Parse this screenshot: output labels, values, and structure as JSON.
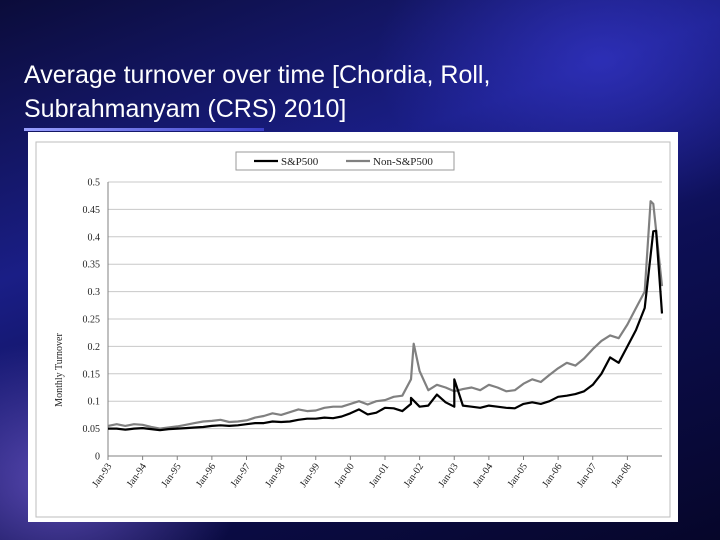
{
  "slide": {
    "title": "Average turnover over time [Chordia, Roll, Subrahmanyam (CRS) 2010]"
  },
  "colors": {
    "sp500": "#000000",
    "non_sp500": "#808080"
  },
  "chart_data": {
    "type": "line",
    "title": "",
    "xlabel": "",
    "ylabel": "Monthly Turnover",
    "ylim": [
      0,
      0.5
    ],
    "yticks": [
      "0",
      "0.05",
      "0.1",
      "0.15",
      "0.2",
      "0.25",
      "0.3",
      "0.35",
      "0.4",
      "0.45",
      "0.5"
    ],
    "xticks": [
      "Jan-93",
      "Jan-94",
      "Jan-95",
      "Jan-96",
      "Jan-97",
      "Jan-98",
      "Jan-99",
      "Jan-00",
      "Jan-01",
      "Jan-02",
      "Jan-03",
      "Jan-04",
      "Jan-05",
      "Jan-06",
      "Jan-07",
      "Jan-08"
    ],
    "xrange": [
      1993.0,
      2009.0
    ],
    "grid": "horizontal",
    "legend_position": "top",
    "series": [
      {
        "name": "S&P500",
        "color": "#000000",
        "points": [
          [
            1993.0,
            0.05
          ],
          [
            1993.25,
            0.05
          ],
          [
            1993.5,
            0.048
          ],
          [
            1993.75,
            0.05
          ],
          [
            1994.0,
            0.051
          ],
          [
            1994.25,
            0.049
          ],
          [
            1994.5,
            0.047
          ],
          [
            1994.75,
            0.049
          ],
          [
            1995.0,
            0.05
          ],
          [
            1995.25,
            0.051
          ],
          [
            1995.5,
            0.052
          ],
          [
            1995.75,
            0.053
          ],
          [
            1996.0,
            0.055
          ],
          [
            1996.25,
            0.056
          ],
          [
            1996.5,
            0.055
          ],
          [
            1996.75,
            0.056
          ],
          [
            1997.0,
            0.058
          ],
          [
            1997.25,
            0.06
          ],
          [
            1997.5,
            0.06
          ],
          [
            1997.75,
            0.063
          ],
          [
            1998.0,
            0.062
          ],
          [
            1998.25,
            0.063
          ],
          [
            1998.5,
            0.066
          ],
          [
            1998.75,
            0.068
          ],
          [
            1999.0,
            0.068
          ],
          [
            1999.25,
            0.07
          ],
          [
            1999.5,
            0.069
          ],
          [
            1999.75,
            0.072
          ],
          [
            2000.0,
            0.078
          ],
          [
            2000.25,
            0.085
          ],
          [
            2000.5,
            0.076
          ],
          [
            2000.75,
            0.079
          ],
          [
            2001.0,
            0.088
          ],
          [
            2001.25,
            0.087
          ],
          [
            2001.5,
            0.082
          ],
          [
            2001.75,
            0.095
          ],
          [
            2002.0,
            0.09
          ],
          [
            2002.25,
            0.092
          ],
          [
            2002.5,
            0.112
          ],
          [
            2002.75,
            0.098
          ],
          [
            2003.0,
            0.09
          ],
          [
            2003.25,
            0.092
          ],
          [
            2003.5,
            0.09
          ],
          [
            2003.75,
            0.088
          ],
          [
            2004.0,
            0.092
          ],
          [
            2004.25,
            0.09
          ],
          [
            2004.5,
            0.088
          ],
          [
            2004.75,
            0.087
          ],
          [
            2005.0,
            0.095
          ],
          [
            2005.25,
            0.098
          ],
          [
            2005.5,
            0.095
          ],
          [
            2005.75,
            0.1
          ],
          [
            2006.0,
            0.108
          ],
          [
            2006.25,
            0.11
          ],
          [
            2006.5,
            0.113
          ],
          [
            2006.75,
            0.118
          ],
          [
            2007.0,
            0.13
          ],
          [
            2007.25,
            0.15
          ],
          [
            2007.5,
            0.18
          ],
          [
            2007.75,
            0.17
          ],
          [
            2008.0,
            0.2
          ],
          [
            2008.25,
            0.23
          ],
          [
            2008.5,
            0.27
          ],
          [
            2008.75,
            0.41
          ],
          [
            2009.0,
            0.26
          ]
        ]
      },
      {
        "name": "Non-S&P500",
        "color": "#808080",
        "points": [
          [
            1993.0,
            0.055
          ],
          [
            1993.25,
            0.058
          ],
          [
            1993.5,
            0.055
          ],
          [
            1993.75,
            0.058
          ],
          [
            1994.0,
            0.057
          ],
          [
            1994.25,
            0.053
          ],
          [
            1994.5,
            0.05
          ],
          [
            1994.75,
            0.052
          ],
          [
            1995.0,
            0.054
          ],
          [
            1995.25,
            0.057
          ],
          [
            1995.5,
            0.06
          ],
          [
            1995.75,
            0.063
          ],
          [
            1996.0,
            0.064
          ],
          [
            1996.25,
            0.066
          ],
          [
            1996.5,
            0.062
          ],
          [
            1996.75,
            0.063
          ],
          [
            1997.0,
            0.065
          ],
          [
            1997.25,
            0.07
          ],
          [
            1997.5,
            0.073
          ],
          [
            1997.75,
            0.078
          ],
          [
            1998.0,
            0.075
          ],
          [
            1998.25,
            0.08
          ],
          [
            1998.5,
            0.085
          ],
          [
            1998.75,
            0.082
          ],
          [
            1999.0,
            0.083
          ],
          [
            1999.25,
            0.088
          ],
          [
            1999.5,
            0.09
          ],
          [
            1999.75,
            0.09
          ],
          [
            2000.0,
            0.095
          ],
          [
            2000.25,
            0.1
          ],
          [
            2000.5,
            0.094
          ],
          [
            2000.75,
            0.1
          ],
          [
            2001.0,
            0.102
          ],
          [
            2001.25,
            0.108
          ],
          [
            2001.5,
            0.11
          ],
          [
            2001.75,
            0.14
          ],
          [
            2002.0,
            0.155
          ],
          [
            2002.25,
            0.12
          ],
          [
            2002.5,
            0.13
          ],
          [
            2002.75,
            0.125
          ],
          [
            2003.0,
            0.118
          ],
          [
            2003.25,
            0.122
          ],
          [
            2003.5,
            0.125
          ],
          [
            2003.75,
            0.12
          ],
          [
            2004.0,
            0.13
          ],
          [
            2004.25,
            0.125
          ],
          [
            2004.5,
            0.118
          ],
          [
            2004.75,
            0.12
          ],
          [
            2005.0,
            0.132
          ],
          [
            2005.25,
            0.14
          ],
          [
            2005.5,
            0.135
          ],
          [
            2005.75,
            0.148
          ],
          [
            2006.0,
            0.16
          ],
          [
            2006.25,
            0.17
          ],
          [
            2006.5,
            0.165
          ],
          [
            2006.75,
            0.178
          ],
          [
            2007.0,
            0.195
          ],
          [
            2007.25,
            0.21
          ],
          [
            2007.5,
            0.22
          ],
          [
            2007.75,
            0.215
          ],
          [
            2008.0,
            0.24
          ],
          [
            2008.25,
            0.27
          ],
          [
            2008.5,
            0.3
          ],
          [
            2008.75,
            0.46
          ],
          [
            2009.0,
            0.31
          ]
        ]
      }
    ],
    "annotations": [
      {
        "series": "S&P500",
        "x": 2001.75,
        "y": 0.106
      },
      {
        "series": "Non-S&P500",
        "x": 2001.83,
        "y": 0.205
      },
      {
        "series": "S&P500",
        "x": 2003.0,
        "y": 0.14
      },
      {
        "series": "Non-S&P500",
        "x": 2008.67,
        "y": 0.465
      },
      {
        "series": "S&P500",
        "x": 2008.83,
        "y": 0.411
      }
    ]
  }
}
